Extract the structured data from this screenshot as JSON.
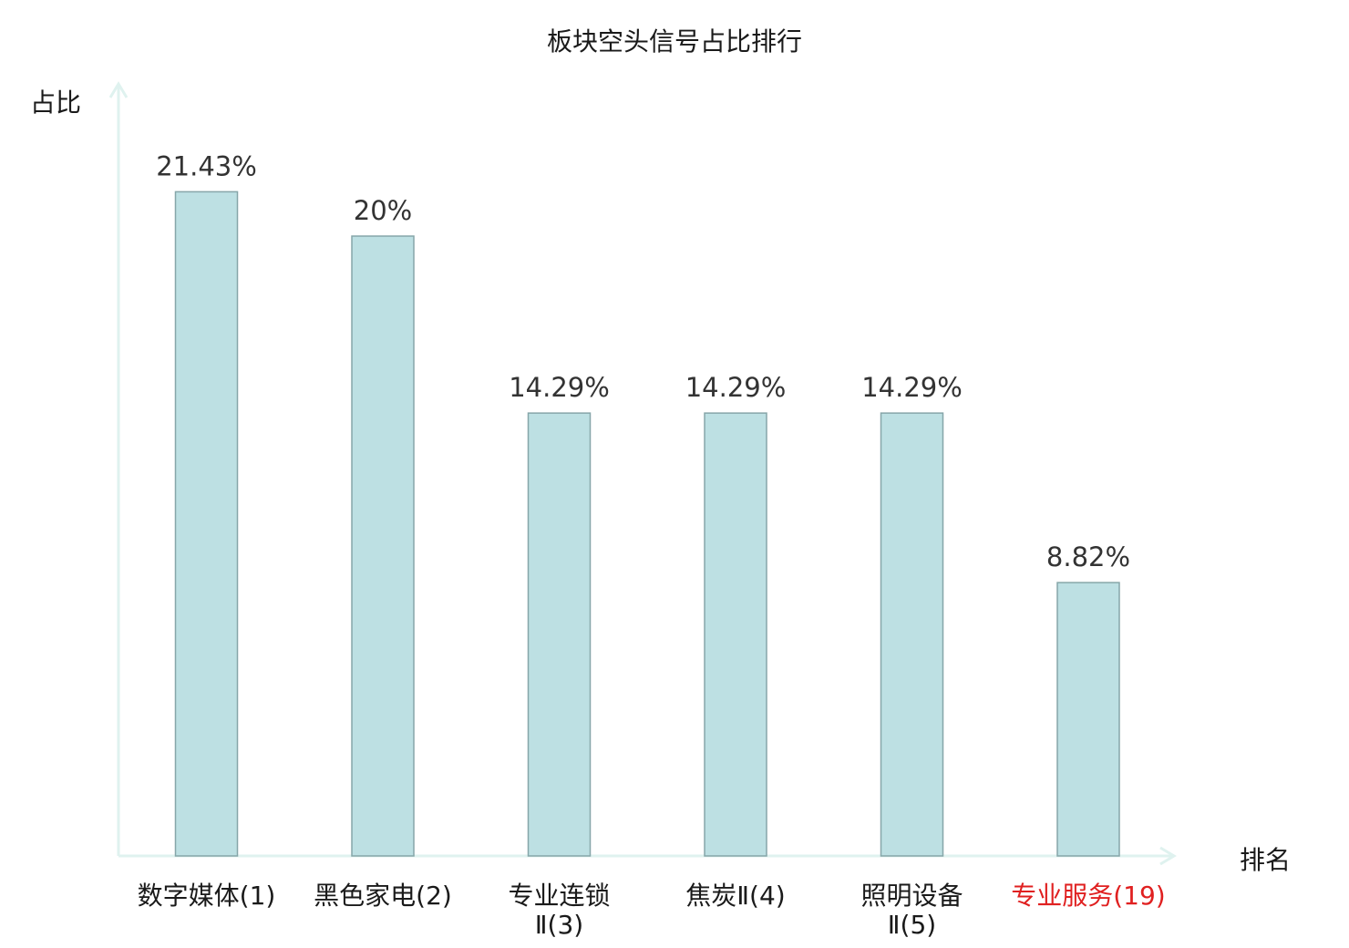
{
  "title": "板块空头信号占比排行",
  "axes": {
    "y_label": "占比",
    "x_label": "排名",
    "axis_color": "#dff2ef"
  },
  "colors": {
    "bar_fill": "#bde0e3",
    "bar_stroke": "#86a6a9",
    "value_text": "#333333",
    "highlight": "#e02020"
  },
  "chart_data": {
    "type": "bar",
    "title": "板块空头信号占比排行",
    "xlabel": "排名",
    "ylabel": "占比",
    "categories": [
      [
        "数字媒体(1)"
      ],
      [
        "黑色家电(2)"
      ],
      [
        "专业连锁",
        "Ⅱ(3)"
      ],
      [
        "焦炭Ⅱ(4)"
      ],
      [
        "照明设备",
        "Ⅱ(5)"
      ],
      [
        "专业服务(19)"
      ]
    ],
    "values": [
      21.43,
      20,
      14.29,
      14.29,
      14.29,
      8.82
    ],
    "value_labels": [
      "21.43%",
      "20%",
      "14.29%",
      "14.29%",
      "14.29%",
      "8.82%"
    ],
    "highlight_index": 5,
    "ylim": [
      0,
      30
    ],
    "grid": false,
    "legend": "none"
  }
}
